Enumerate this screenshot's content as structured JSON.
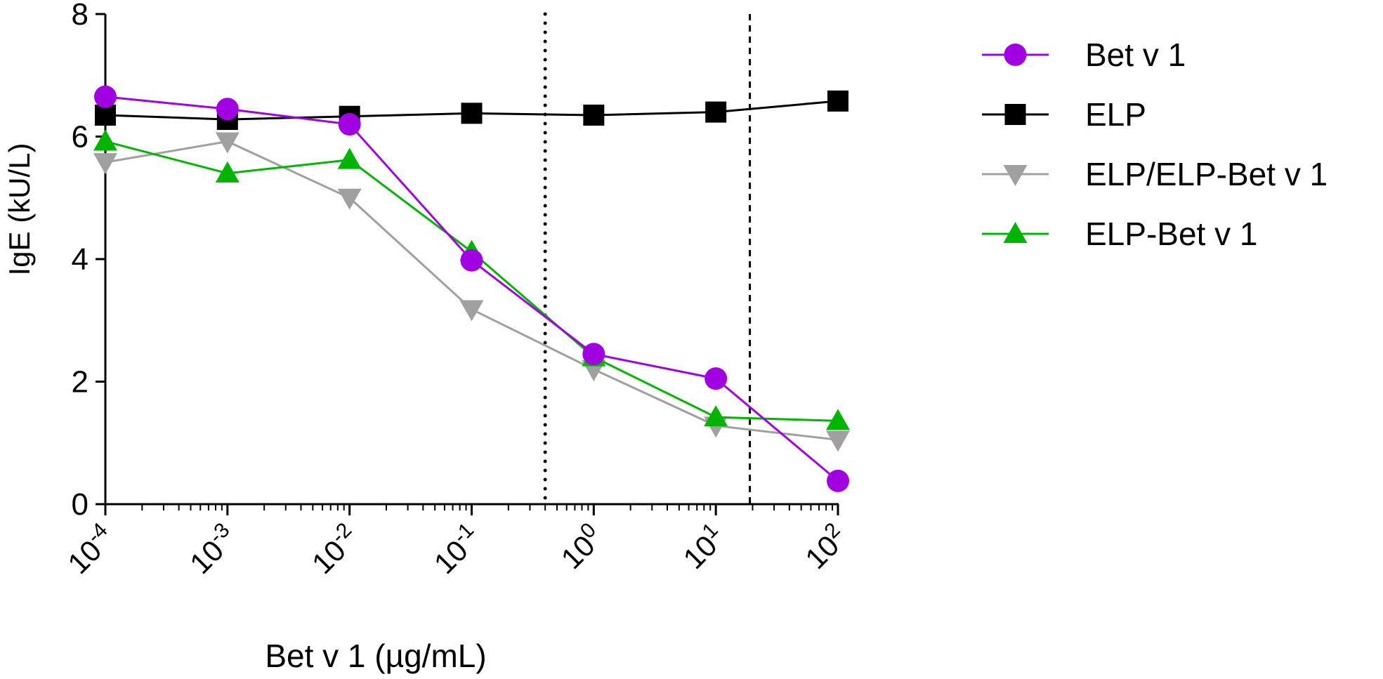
{
  "chart_data": {
    "type": "line",
    "title": "",
    "xlabel": "Bet v 1 (µg/mL)",
    "ylabel": "IgE (kU/L)",
    "x_scale": "log10",
    "xlim": [
      0.0001,
      100
    ],
    "ylim": [
      0,
      8
    ],
    "x_ticks": [
      {
        "base": "10",
        "exp": "-4",
        "value": 0.0001
      },
      {
        "base": "10",
        "exp": "-3",
        "value": 0.001
      },
      {
        "base": "10",
        "exp": "-2",
        "value": 0.01
      },
      {
        "base": "10",
        "exp": "-1",
        "value": 0.1
      },
      {
        "base": "10",
        "exp": "0",
        "value": 1
      },
      {
        "base": "10",
        "exp": "1",
        "value": 10
      },
      {
        "base": "10",
        "exp": "2",
        "value": 100
      }
    ],
    "y_ticks": [
      "0",
      "2",
      "4",
      "6",
      "8"
    ],
    "y_tick_values": [
      0,
      2,
      4,
      6,
      8
    ],
    "reference_lines": [
      {
        "style": "dotted",
        "x": 0.4
      },
      {
        "style": "dashed",
        "x": 19
      }
    ],
    "legend_position": "right",
    "series": [
      {
        "name": "Bet v 1",
        "color": "#a100e0",
        "marker": "circle",
        "x": [
          0.0001,
          0.001,
          0.01,
          0.1,
          1,
          10,
          100
        ],
        "y": [
          6.65,
          6.45,
          6.2,
          3.98,
          2.45,
          2.05,
          0.38
        ]
      },
      {
        "name": "ELP",
        "color": "#000000",
        "marker": "square",
        "x": [
          0.0001,
          0.001,
          0.01,
          0.1,
          1,
          10,
          100
        ],
        "y": [
          6.35,
          6.28,
          6.33,
          6.38,
          6.35,
          6.4,
          6.58
        ]
      },
      {
        "name": "ELP/ELP-Bet v 1",
        "color": "#a0a0a0",
        "marker": "triangle-down",
        "x": [
          0.0001,
          0.001,
          0.01,
          0.1,
          1,
          10,
          100
        ],
        "y": [
          5.58,
          5.92,
          5.0,
          3.18,
          2.2,
          1.28,
          1.05
        ]
      },
      {
        "name": "ELP-Bet v 1",
        "color": "#00b400",
        "marker": "triangle-up",
        "x": [
          0.0001,
          0.001,
          0.01,
          0.1,
          1,
          10,
          100
        ],
        "y": [
          5.92,
          5.4,
          5.62,
          4.12,
          2.4,
          1.42,
          1.36
        ]
      }
    ]
  }
}
